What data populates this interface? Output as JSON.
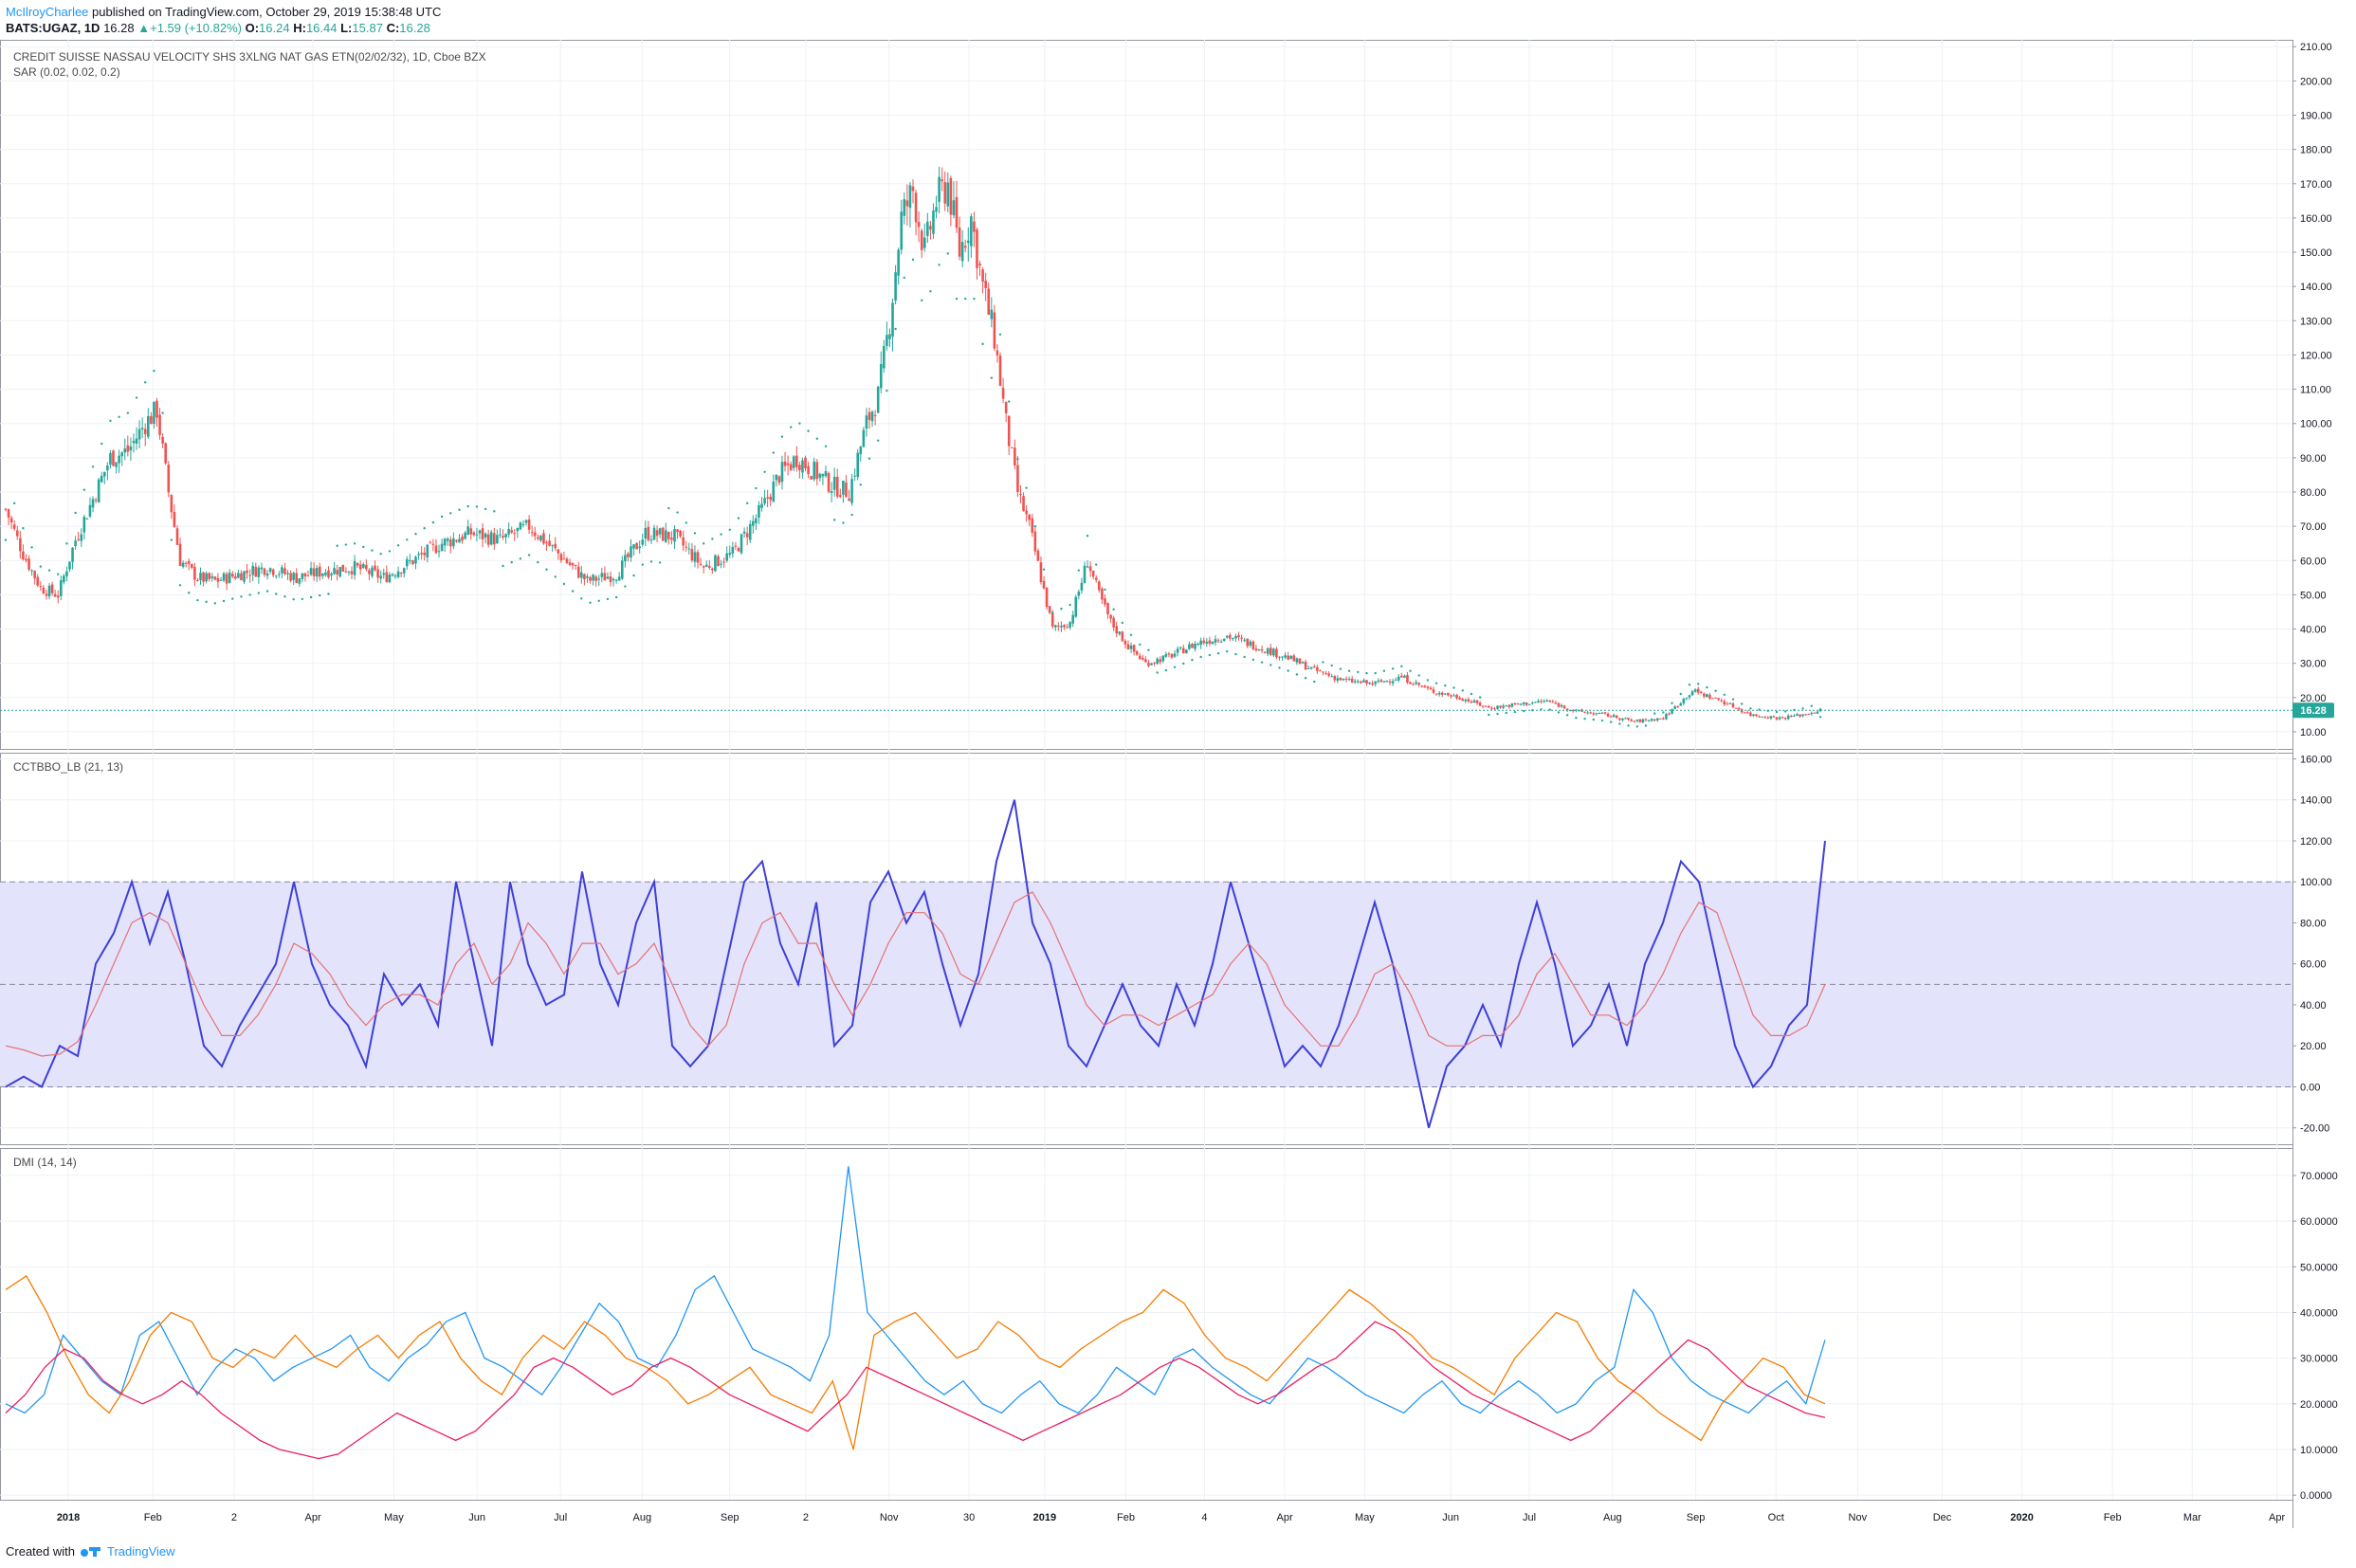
{
  "header": {
    "publisher": "McIlroyCharlee",
    "published_text": "published on TradingView.com, October 29, 2019 15:38:48 UTC",
    "symbol": "BATS:UGAZ, 1D",
    "price": "16.28",
    "change_arrow": "▲",
    "change": "+1.59 (+10.82%)",
    "o_label": "O:",
    "o_value": "16.24",
    "h_label": "H:",
    "h_value": "16.44",
    "l_label": "L:",
    "l_value": "15.87",
    "c_label": "C:",
    "c_value": "16.28"
  },
  "footer": {
    "created_with": "Created with",
    "brand": "TradingView",
    "logo_icon": "tradingview-logo-icon"
  },
  "colors": {
    "up": "#26a69a",
    "down": "#ef5350",
    "sar": "#26a69a",
    "cc_line": "#3f3fd6",
    "cc_signal": "#e57373",
    "cc_band": "#e3e3fb",
    "dmi_plus": "#2196f3",
    "dmi_minus": "#f57c00",
    "dmi_adx": "#e91e63",
    "last_price_bg": "#26a69a"
  },
  "chart_data": [
    {
      "type": "candlestick",
      "title": "CREDIT SUISSE NASSAU VELOCITY SHS 3XLNG NAT GAS ETN(02/02/32), 1D, Cboe BZX",
      "indicator": "SAR (0.02, 0.02, 0.2)",
      "ylim": [
        5,
        212
      ],
      "y_ticks": [
        "10.00",
        "20.00",
        "30.00",
        "40.00",
        "50.00",
        "60.00",
        "70.00",
        "80.00",
        "90.00",
        "100.00",
        "110.00",
        "120.00",
        "130.00",
        "140.00",
        "150.00",
        "160.00",
        "170.00",
        "180.00",
        "190.00",
        "200.00",
        "210.00"
      ],
      "last_price": 16.28,
      "last_price_label": "16.28",
      "close_path": [
        [
          0,
          75
        ],
        [
          6,
          62
        ],
        [
          12,
          52
        ],
        [
          18,
          50
        ],
        [
          24,
          66
        ],
        [
          30,
          78
        ],
        [
          36,
          90
        ],
        [
          42,
          92
        ],
        [
          48,
          100
        ],
        [
          52,
          104
        ],
        [
          56,
          80
        ],
        [
          60,
          60
        ],
        [
          66,
          55
        ],
        [
          72,
          54
        ],
        [
          80,
          56
        ],
        [
          90,
          58
        ],
        [
          100,
          55
        ],
        [
          110,
          57
        ],
        [
          120,
          58
        ],
        [
          130,
          55
        ],
        [
          140,
          60
        ],
        [
          150,
          65
        ],
        [
          160,
          68
        ],
        [
          170,
          66
        ],
        [
          180,
          70
        ],
        [
          190,
          62
        ],
        [
          200,
          54
        ],
        [
          210,
          56
        ],
        [
          220,
          68
        ],
        [
          230,
          67
        ],
        [
          240,
          58
        ],
        [
          250,
          62
        ],
        [
          260,
          75
        ],
        [
          266,
          85
        ],
        [
          272,
          90
        ],
        [
          278,
          86
        ],
        [
          284,
          82
        ],
        [
          290,
          80
        ],
        [
          296,
          100
        ],
        [
          300,
          108
        ],
        [
          304,
          130
        ],
        [
          308,
          160
        ],
        [
          312,
          168
        ],
        [
          316,
          150
        ],
        [
          320,
          165
        ],
        [
          324,
          170
        ],
        [
          328,
          150
        ],
        [
          332,
          160
        ],
        [
          336,
          140
        ],
        [
          340,
          125
        ],
        [
          344,
          100
        ],
        [
          348,
          80
        ],
        [
          352,
          70
        ],
        [
          356,
          55
        ],
        [
          360,
          40
        ],
        [
          366,
          42
        ],
        [
          372,
          60
        ],
        [
          376,
          50
        ],
        [
          380,
          42
        ],
        [
          386,
          35
        ],
        [
          392,
          30
        ],
        [
          400,
          32
        ],
        [
          410,
          36
        ],
        [
          420,
          38
        ],
        [
          430,
          35
        ],
        [
          440,
          32
        ],
        [
          450,
          28
        ],
        [
          460,
          25
        ],
        [
          470,
          24
        ],
        [
          480,
          26
        ],
        [
          490,
          22
        ],
        [
          500,
          20
        ],
        [
          510,
          17
        ],
        [
          520,
          18
        ],
        [
          530,
          19
        ],
        [
          540,
          16
        ],
        [
          550,
          15
        ],
        [
          560,
          13
        ],
        [
          570,
          14
        ],
        [
          580,
          22
        ],
        [
          590,
          19
        ],
        [
          600,
          15
        ],
        [
          610,
          14
        ],
        [
          618,
          15
        ],
        [
          624,
          16.28
        ]
      ]
    },
    {
      "type": "line",
      "title": "CCTBBO_LB (21, 13)",
      "ylim": [
        -28,
        163
      ],
      "y_ticks": [
        "-20.00",
        "0.00",
        "20.00",
        "40.00",
        "60.00",
        "80.00",
        "100.00",
        "120.00",
        "140.00",
        "160.00"
      ],
      "band": [
        0,
        100
      ],
      "levels": [
        0,
        50,
        100
      ],
      "series": [
        {
          "key": "cc",
          "values": [
            0,
            5,
            0,
            20,
            15,
            60,
            75,
            100,
            70,
            95,
            60,
            20,
            10,
            30,
            45,
            60,
            100,
            60,
            40,
            30,
            10,
            55,
            40,
            50,
            30,
            100,
            60,
            20,
            100,
            60,
            40,
            45,
            105,
            60,
            40,
            80,
            100,
            20,
            10,
            20,
            60,
            100,
            110,
            70,
            50,
            90,
            20,
            30,
            90,
            105,
            80,
            95,
            60,
            30,
            55,
            110,
            140,
            80,
            60,
            20,
            10,
            30,
            50,
            30,
            20,
            50,
            30,
            60,
            100,
            70,
            40,
            10,
            20,
            10,
            30,
            60,
            90,
            60,
            20,
            -20,
            10,
            20,
            40,
            20,
            60,
            90,
            60,
            20,
            30,
            50,
            20,
            60,
            80,
            110,
            100,
            60,
            20,
            0,
            10,
            30,
            40,
            120
          ]
        },
        {
          "key": "signal",
          "values": [
            20,
            18,
            15,
            16,
            22,
            40,
            60,
            80,
            85,
            80,
            60,
            40,
            25,
            25,
            35,
            50,
            70,
            65,
            55,
            40,
            30,
            40,
            45,
            45,
            40,
            60,
            70,
            50,
            60,
            80,
            70,
            55,
            70,
            70,
            55,
            60,
            70,
            50,
            30,
            20,
            30,
            60,
            80,
            85,
            70,
            70,
            50,
            35,
            50,
            70,
            85,
            85,
            75,
            55,
            50,
            70,
            90,
            95,
            80,
            60,
            40,
            30,
            35,
            35,
            30,
            35,
            40,
            45,
            60,
            70,
            60,
            40,
            30,
            20,
            20,
            35,
            55,
            60,
            45,
            25,
            20,
            20,
            25,
            25,
            35,
            55,
            65,
            50,
            35,
            35,
            30,
            40,
            55,
            75,
            90,
            85,
            60,
            35,
            25,
            25,
            30,
            50
          ]
        }
      ]
    },
    {
      "type": "line",
      "title": "DMI (14, 14)",
      "ylim": [
        -1,
        76
      ],
      "y_ticks": [
        "0.0000",
        "10.0000",
        "20.0000",
        "30.0000",
        "40.0000",
        "50.0000",
        "60.0000",
        "70.0000"
      ],
      "series": [
        {
          "key": "plus",
          "values": [
            20,
            18,
            22,
            35,
            30,
            25,
            22,
            35,
            38,
            30,
            22,
            28,
            32,
            30,
            25,
            28,
            30,
            32,
            35,
            28,
            25,
            30,
            33,
            38,
            40,
            30,
            28,
            25,
            22,
            28,
            35,
            42,
            38,
            30,
            28,
            35,
            45,
            48,
            40,
            32,
            30,
            28,
            25,
            35,
            72,
            40,
            35,
            30,
            25,
            22,
            25,
            20,
            18,
            22,
            25,
            20,
            18,
            22,
            28,
            25,
            22,
            30,
            32,
            28,
            25,
            22,
            20,
            25,
            30,
            28,
            25,
            22,
            20,
            18,
            22,
            25,
            20,
            18,
            22,
            25,
            22,
            18,
            20,
            25,
            28,
            45,
            40,
            30,
            25,
            22,
            20,
            18,
            22,
            25,
            20,
            34
          ]
        },
        {
          "key": "minus",
          "values": [
            45,
            48,
            40,
            30,
            22,
            18,
            25,
            35,
            40,
            38,
            30,
            28,
            32,
            30,
            35,
            30,
            28,
            32,
            35,
            30,
            35,
            38,
            30,
            25,
            22,
            30,
            35,
            32,
            38,
            35,
            30,
            28,
            25,
            20,
            22,
            25,
            28,
            22,
            20,
            18,
            25,
            10,
            35,
            38,
            40,
            35,
            30,
            32,
            38,
            35,
            30,
            28,
            32,
            35,
            38,
            40,
            45,
            42,
            35,
            30,
            28,
            25,
            30,
            35,
            40,
            45,
            42,
            38,
            35,
            30,
            28,
            25,
            22,
            30,
            35,
            40,
            38,
            30,
            25,
            22,
            18,
            15,
            12,
            20,
            25,
            30,
            28,
            22,
            20
          ]
        },
        {
          "key": "adx",
          "values": [
            18,
            22,
            28,
            32,
            30,
            25,
            22,
            20,
            22,
            25,
            22,
            18,
            15,
            12,
            10,
            9,
            8,
            9,
            12,
            15,
            18,
            16,
            14,
            12,
            14,
            18,
            22,
            28,
            30,
            28,
            25,
            22,
            24,
            28,
            30,
            28,
            25,
            22,
            20,
            18,
            16,
            14,
            18,
            22,
            28,
            26,
            24,
            22,
            20,
            18,
            16,
            14,
            12,
            14,
            16,
            18,
            20,
            22,
            25,
            28,
            30,
            28,
            25,
            22,
            20,
            22,
            25,
            28,
            30,
            34,
            38,
            36,
            32,
            28,
            25,
            22,
            20,
            18,
            16,
            14,
            12,
            14,
            18,
            22,
            26,
            30,
            34,
            32,
            28,
            24,
            22,
            20,
            18,
            17
          ]
        }
      ]
    }
  ],
  "x_ticks": [
    {
      "label": "2018",
      "bold": true,
      "frac": 0.0298
    },
    {
      "label": "Feb",
      "bold": false,
      "frac": 0.0667
    },
    {
      "label": "2",
      "bold": false,
      "frac": 0.1021
    },
    {
      "label": "Apr",
      "bold": false,
      "frac": 0.1365
    },
    {
      "label": "May",
      "bold": false,
      "frac": 0.1718
    },
    {
      "label": "Jun",
      "bold": false,
      "frac": 0.2081
    },
    {
      "label": "Jul",
      "bold": false,
      "frac": 0.2445
    },
    {
      "label": "Aug",
      "bold": false,
      "frac": 0.2801
    },
    {
      "label": "Sep",
      "bold": false,
      "frac": 0.3183
    },
    {
      "label": "2",
      "bold": false,
      "frac": 0.3515
    },
    {
      "label": "Nov",
      "bold": false,
      "frac": 0.3878
    },
    {
      "label": "30",
      "bold": false,
      "frac": 0.4227
    },
    {
      "label": "2019",
      "bold": true,
      "frac": 0.4557
    },
    {
      "label": "Feb",
      "bold": false,
      "frac": 0.4911
    },
    {
      "label": "4",
      "bold": false,
      "frac": 0.5254
    },
    {
      "label": "Apr",
      "bold": false,
      "frac": 0.5604
    },
    {
      "label": "May",
      "bold": false,
      "frac": 0.5953
    },
    {
      "label": "Jun",
      "bold": false,
      "frac": 0.6328
    },
    {
      "label": "Jul",
      "bold": false,
      "frac": 0.6671
    },
    {
      "label": "Aug",
      "bold": false,
      "frac": 0.7034
    },
    {
      "label": "Sep",
      "bold": false,
      "frac": 0.7397
    },
    {
      "label": "Oct",
      "bold": false,
      "frac": 0.7747
    },
    {
      "label": "Nov",
      "bold": false,
      "frac": 0.8103
    },
    {
      "label": "Dec",
      "bold": false,
      "frac": 0.8472
    },
    {
      "label": "2020",
      "bold": true,
      "frac": 0.882
    },
    {
      "label": "Feb",
      "bold": false,
      "frac": 0.9215
    },
    {
      "label": "Mar",
      "bold": false,
      "frac": 0.9563
    },
    {
      "label": "Apr",
      "bold": false,
      "frac": 0.9932
    }
  ]
}
